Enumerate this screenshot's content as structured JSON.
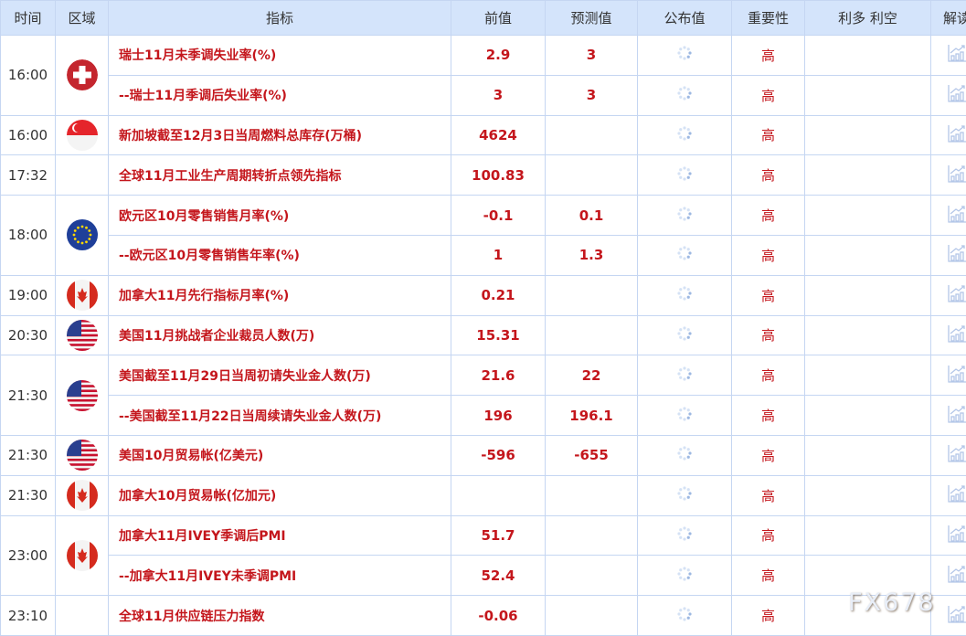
{
  "headers": [
    "时间",
    "区域",
    "指标",
    "前值",
    "预测值",
    "公布值",
    "重要性",
    "利多 利空",
    "解读"
  ],
  "groups": [
    {
      "time": "16:00",
      "flag": "switzerland",
      "items": [
        {
          "name": "瑞士11月未季调失业率(%)",
          "prev": "2.9",
          "forecast": "3",
          "importance": "高"
        },
        {
          "name": "--瑞士11月季调后失业率(%)",
          "prev": "3",
          "forecast": "3",
          "importance": "高"
        }
      ]
    },
    {
      "time": "16:00",
      "flag": "singapore",
      "items": [
        {
          "name": "新加坡截至12月3日当周燃料总库存(万桶)",
          "prev": "4624",
          "forecast": "",
          "importance": "高"
        }
      ]
    },
    {
      "time": "17:32",
      "flag": "",
      "items": [
        {
          "name": "全球11月工业生产周期转折点领先指标",
          "prev": "100.83",
          "forecast": "",
          "importance": "高"
        }
      ]
    },
    {
      "time": "18:00",
      "flag": "eu",
      "items": [
        {
          "name": "欧元区10月零售销售月率(%)",
          "prev": "-0.1",
          "forecast": "0.1",
          "importance": "高"
        },
        {
          "name": "--欧元区10月零售销售年率(%)",
          "prev": "1",
          "forecast": "1.3",
          "importance": "高"
        }
      ]
    },
    {
      "time": "19:00",
      "flag": "canada",
      "items": [
        {
          "name": "加拿大11月先行指标月率(%)",
          "prev": "0.21",
          "forecast": "",
          "importance": "高"
        }
      ]
    },
    {
      "time": "20:30",
      "flag": "usa",
      "items": [
        {
          "name": "美国11月挑战者企业裁员人数(万)",
          "prev": "15.31",
          "forecast": "",
          "importance": "高"
        }
      ]
    },
    {
      "time": "21:30",
      "flag": "usa",
      "items": [
        {
          "name": "美国截至11月29日当周初请失业金人数(万)",
          "prev": "21.6",
          "forecast": "22",
          "importance": "高"
        },
        {
          "name": "--美国截至11月22日当周续请失业金人数(万)",
          "prev": "196",
          "forecast": "196.1",
          "importance": "高"
        }
      ]
    },
    {
      "time": "21:30",
      "flag": "usa",
      "items": [
        {
          "name": "美国10月贸易帐(亿美元)",
          "prev": "-596",
          "forecast": "-655",
          "importance": "高"
        }
      ]
    },
    {
      "time": "21:30",
      "flag": "canada",
      "items": [
        {
          "name": "加拿大10月贸易帐(亿加元)",
          "prev": "",
          "forecast": "",
          "importance": "高"
        }
      ]
    },
    {
      "time": "23:00",
      "flag": "canada",
      "items": [
        {
          "name": "加拿大11月IVEY季调后PMI",
          "prev": "51.7",
          "forecast": "",
          "importance": "高"
        },
        {
          "name": "--加拿大11月IVEY未季调PMI",
          "prev": "52.4",
          "forecast": "",
          "importance": "高"
        }
      ]
    },
    {
      "time": "23:10",
      "flag": "",
      "items": [
        {
          "name": "全球11月供应链压力指数",
          "prev": "-0.06",
          "forecast": "",
          "importance": "高"
        }
      ]
    }
  ],
  "icons": {
    "published": "loading-spinner-icon",
    "analysis": "chart-analysis-icon"
  },
  "colors": {
    "header_bg": "#d4e4fb",
    "accent_red": "#c4161c",
    "border": "#c5d6f2"
  },
  "watermark": "FX678"
}
